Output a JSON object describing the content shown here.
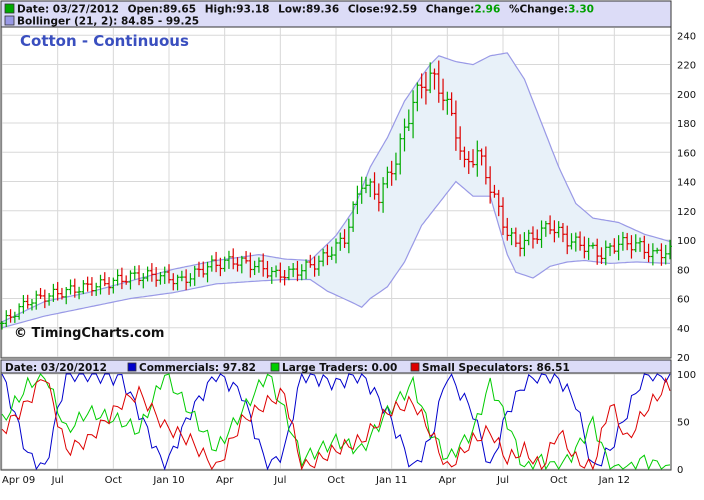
{
  "chart_data": [
    {
      "type": "ohlc",
      "title": "Cotton - Continuous",
      "watermark": "© TimingCharts.com",
      "header": {
        "date_label": "Date: 03/27/2012",
        "open_label": "Open:89.65",
        "high_label": "High:93.18",
        "low_label": "Low:89.36",
        "close_label": "Close:92.59",
        "change_label": "Change:",
        "change_value": "2.96",
        "pct_label": "%Change:",
        "pct_value": "3.30",
        "bollinger_label": "Bollinger (21, 2): 84.85 - 99.25"
      },
      "y_ticks": [
        "20",
        "40",
        "60",
        "80",
        "100",
        "120",
        "140",
        "160",
        "180",
        "200",
        "220",
        "240"
      ],
      "ylim": [
        20,
        245
      ],
      "x_ticks": [
        {
          "label": "Apr 09",
          "t": 0
        },
        {
          "label": "Jul",
          "t": 13
        },
        {
          "label": "Oct",
          "t": 26
        },
        {
          "label": "Jan 10",
          "t": 39
        },
        {
          "label": "Apr",
          "t": 52
        },
        {
          "label": "Jul",
          "t": 65
        },
        {
          "label": "Oct",
          "t": 78
        },
        {
          "label": "Jan 11",
          "t": 91
        },
        {
          "label": "Apr",
          "t": 104
        },
        {
          "label": "Jul",
          "t": 117
        },
        {
          "label": "Oct",
          "t": 130
        },
        {
          "label": "Jan 12",
          "t": 143
        }
      ],
      "x_range": [
        0,
        156
      ],
      "price_anchors": [
        [
          0,
          43
        ],
        [
          6,
          58
        ],
        [
          12,
          63
        ],
        [
          18,
          67
        ],
        [
          24,
          70
        ],
        [
          30,
          75
        ],
        [
          36,
          76
        ],
        [
          42,
          72
        ],
        [
          48,
          82
        ],
        [
          54,
          86
        ],
        [
          60,
          82
        ],
        [
          64,
          76
        ],
        [
          68,
          78
        ],
        [
          74,
          85
        ],
        [
          80,
          101
        ],
        [
          84,
          140
        ],
        [
          88,
          130
        ],
        [
          92,
          155
        ],
        [
          96,
          195
        ],
        [
          98,
          205
        ],
        [
          100,
          212
        ],
        [
          103,
          200
        ],
        [
          106,
          175
        ],
        [
          108,
          150
        ],
        [
          111,
          160
        ],
        [
          113,
          145
        ],
        [
          116,
          120
        ],
        [
          118,
          105
        ],
        [
          120,
          97
        ],
        [
          124,
          102
        ],
        [
          128,
          110
        ],
        [
          132,
          100
        ],
        [
          136,
          96
        ],
        [
          140,
          90
        ],
        [
          144,
          98
        ],
        [
          148,
          97
        ],
        [
          152,
          90
        ],
        [
          155,
          92
        ]
      ],
      "bb_upper_anchors": [
        [
          0,
          44
        ],
        [
          10,
          58
        ],
        [
          20,
          64
        ],
        [
          30,
          72
        ],
        [
          40,
          80
        ],
        [
          50,
          86
        ],
        [
          60,
          90
        ],
        [
          66,
          87
        ],
        [
          72,
          86
        ],
        [
          78,
          103
        ],
        [
          82,
          120
        ],
        [
          86,
          150
        ],
        [
          90,
          170
        ],
        [
          94,
          195
        ],
        [
          98,
          212
        ],
        [
          100,
          220
        ],
        [
          102,
          226
        ],
        [
          106,
          222
        ],
        [
          110,
          220
        ],
        [
          114,
          226
        ],
        [
          118,
          228
        ],
        [
          122,
          210
        ],
        [
          126,
          180
        ],
        [
          130,
          150
        ],
        [
          134,
          125
        ],
        [
          138,
          115
        ],
        [
          144,
          112
        ],
        [
          150,
          104
        ],
        [
          156,
          99
        ]
      ],
      "bb_lower_anchors": [
        [
          0,
          40
        ],
        [
          10,
          48
        ],
        [
          20,
          54
        ],
        [
          30,
          60
        ],
        [
          40,
          64
        ],
        [
          50,
          70
        ],
        [
          60,
          72
        ],
        [
          66,
          73
        ],
        [
          72,
          73
        ],
        [
          76,
          65
        ],
        [
          82,
          57
        ],
        [
          84,
          54
        ],
        [
          86,
          60
        ],
        [
          90,
          68
        ],
        [
          94,
          85
        ],
        [
          98,
          110
        ],
        [
          102,
          125
        ],
        [
          106,
          140
        ],
        [
          110,
          130
        ],
        [
          114,
          130
        ],
        [
          116,
          110
        ],
        [
          118,
          90
        ],
        [
          120,
          78
        ],
        [
          124,
          74
        ],
        [
          128,
          82
        ],
        [
          132,
          85
        ],
        [
          136,
          86
        ],
        [
          142,
          84
        ],
        [
          148,
          85
        ],
        [
          156,
          84
        ]
      ],
      "colors": {
        "up": "#00aa00",
        "down": "#dd0000",
        "band_fill": "#e8f1f9",
        "band_line": "#9999e6",
        "title": "#3a4fbf"
      }
    },
    {
      "type": "line",
      "header": {
        "date_label": "Date: 03/20/2012",
        "series": [
          {
            "name": "Commercials: 97.82",
            "color": "#0000cc"
          },
          {
            "name": "Large Traders: 0.00",
            "color": "#00cc00"
          },
          {
            "name": "Small Speculators: 86.51",
            "color": "#dd0000"
          }
        ]
      },
      "y_ticks": [
        "0",
        "50",
        "100"
      ],
      "ylim": [
        0,
        100
      ],
      "commercials": [
        [
          0,
          100
        ],
        [
          6,
          15
        ],
        [
          10,
          0
        ],
        [
          15,
          100
        ],
        [
          20,
          100
        ],
        [
          28,
          95
        ],
        [
          32,
          60
        ],
        [
          38,
          0
        ],
        [
          44,
          60
        ],
        [
          50,
          100
        ],
        [
          56,
          80
        ],
        [
          62,
          0
        ],
        [
          66,
          20
        ],
        [
          70,
          100
        ],
        [
          78,
          90
        ],
        [
          84,
          100
        ],
        [
          90,
          60
        ],
        [
          96,
          0
        ],
        [
          100,
          30
        ],
        [
          104,
          100
        ],
        [
          110,
          60
        ],
        [
          114,
          0
        ],
        [
          118,
          60
        ],
        [
          122,
          90
        ],
        [
          126,
          100
        ],
        [
          130,
          95
        ],
        [
          134,
          70
        ],
        [
          138,
          0
        ],
        [
          142,
          20
        ],
        [
          146,
          60
        ],
        [
          150,
          100
        ],
        [
          155,
          98
        ]
      ],
      "large_traders": [
        [
          0,
          50
        ],
        [
          6,
          88
        ],
        [
          10,
          100
        ],
        [
          15,
          40
        ],
        [
          20,
          60
        ],
        [
          28,
          50
        ],
        [
          32,
          40
        ],
        [
          38,
          100
        ],
        [
          44,
          60
        ],
        [
          50,
          20
        ],
        [
          56,
          60
        ],
        [
          62,
          100
        ],
        [
          66,
          60
        ],
        [
          70,
          10
        ],
        [
          78,
          30
        ],
        [
          84,
          20
        ],
        [
          90,
          60
        ],
        [
          96,
          90
        ],
        [
          100,
          40
        ],
        [
          104,
          10
        ],
        [
          110,
          40
        ],
        [
          114,
          90
        ],
        [
          118,
          50
        ],
        [
          122,
          0
        ],
        [
          126,
          10
        ],
        [
          130,
          0
        ],
        [
          134,
          20
        ],
        [
          138,
          50
        ],
        [
          142,
          0
        ],
        [
          146,
          0
        ],
        [
          150,
          10
        ],
        [
          155,
          0
        ]
      ],
      "small_speculators": [
        [
          0,
          40
        ],
        [
          6,
          70
        ],
        [
          10,
          100
        ],
        [
          15,
          20
        ],
        [
          20,
          30
        ],
        [
          28,
          70
        ],
        [
          32,
          80
        ],
        [
          38,
          45
        ],
        [
          44,
          30
        ],
        [
          50,
          0
        ],
        [
          56,
          50
        ],
        [
          62,
          70
        ],
        [
          66,
          80
        ],
        [
          70,
          0
        ],
        [
          78,
          20
        ],
        [
          84,
          30
        ],
        [
          90,
          60
        ],
        [
          96,
          70
        ],
        [
          100,
          40
        ],
        [
          104,
          0
        ],
        [
          110,
          30
        ],
        [
          114,
          40
        ],
        [
          118,
          10
        ],
        [
          122,
          20
        ],
        [
          126,
          0
        ],
        [
          130,
          40
        ],
        [
          134,
          10
        ],
        [
          138,
          0
        ],
        [
          142,
          70
        ],
        [
          146,
          30
        ],
        [
          150,
          60
        ],
        [
          155,
          87
        ]
      ]
    }
  ]
}
